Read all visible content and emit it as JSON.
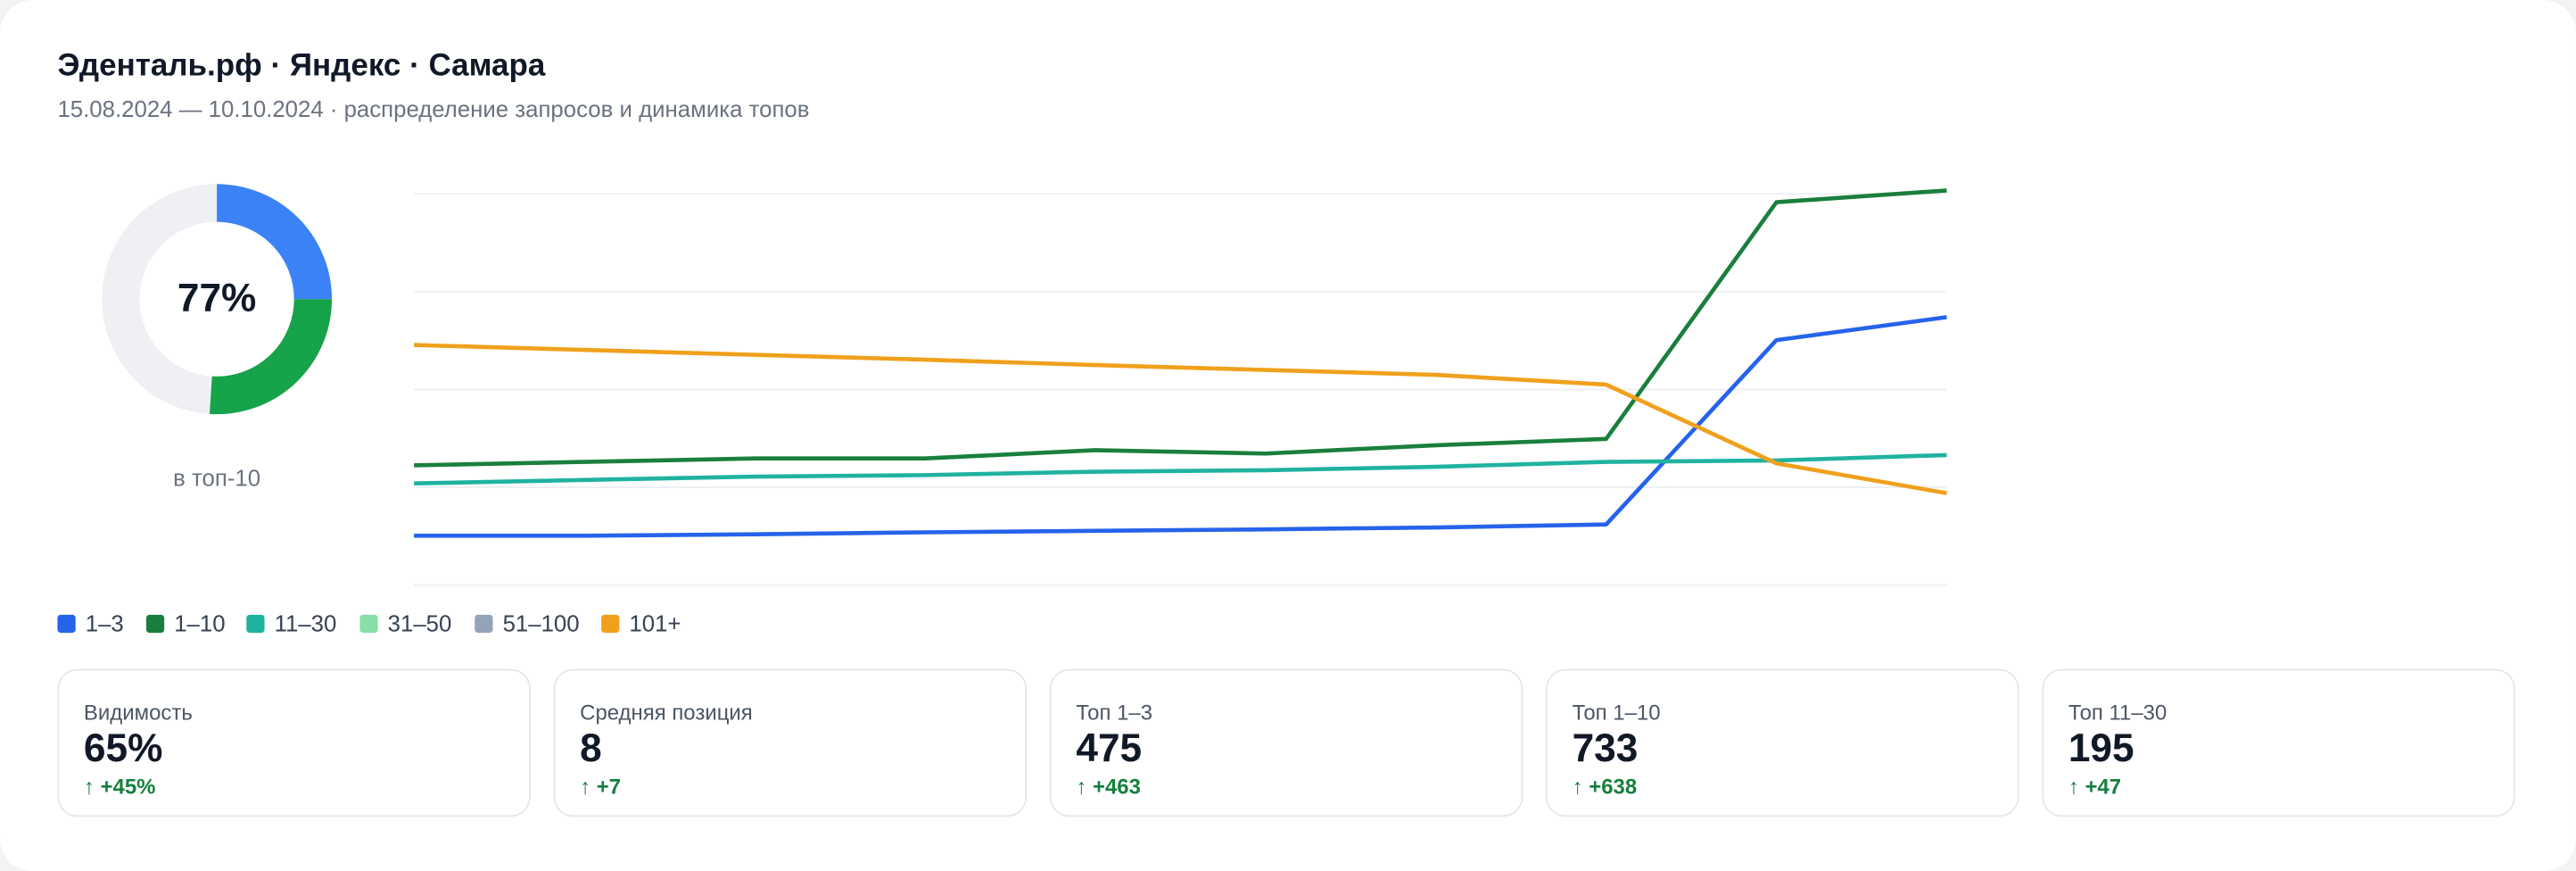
{
  "header": {
    "title": "Эденталь.рф · Яндекс · Самара",
    "subtitle": "15.08.2024 — 10.10.2024 · распределение запросов и динамика топов"
  },
  "chart_data": [
    {
      "type": "donut",
      "center_label": "77%",
      "caption": "в топ-10",
      "values": [
        25,
        26
      ],
      "colors": [
        "#3b82f6",
        "#16a34a"
      ],
      "track_color": "#eef0f3"
    },
    {
      "type": "line",
      "categories": [
        null,
        null,
        null,
        null,
        null,
        null,
        null,
        null,
        null,
        null
      ],
      "ylim": [
        0,
        820
      ],
      "yticks": [
        0,
        200,
        400,
        600,
        800
      ],
      "grid": true,
      "series": [
        {
          "name": "1–3",
          "color": "#2563eb",
          "values": [
            101,
            101,
            104,
            108,
            111,
            114,
            118,
            124,
            501,
            548
          ]
        },
        {
          "name": "1–10",
          "color": "#1a7f3c",
          "values": [
            245,
            252,
            259,
            259,
            276,
            269,
            286,
            299,
            783,
            807
          ]
        },
        {
          "name": "11–30",
          "color": "#20b2a0",
          "values": [
            208,
            215,
            222,
            225,
            232,
            235,
            242,
            252,
            255,
            266
          ]
        },
        {
          "name": "31–50",
          "color": "#86e0a8",
          "values": [
            null,
            null,
            null,
            null,
            null,
            null,
            null,
            null,
            null,
            null
          ]
        },
        {
          "name": "51–100",
          "color": "#94a3b8",
          "values": [
            null,
            null,
            null,
            null,
            null,
            null,
            null,
            null,
            null,
            null
          ]
        },
        {
          "name": "101+",
          "color": "#f0a01c",
          "values": [
            491,
            481,
            471,
            461,
            450,
            440,
            430,
            410,
            249,
            188
          ]
        }
      ]
    }
  ],
  "stats": [
    {
      "label": "Видимость",
      "value": "65%",
      "delta": "↑ +45%"
    },
    {
      "label": "Средняя позиция",
      "value": "8",
      "delta": "↑ +7"
    },
    {
      "label": "Топ 1–3",
      "value": "475",
      "delta": "↑ +463"
    },
    {
      "label": "Топ 1–10",
      "value": "733",
      "delta": "↑ +638"
    },
    {
      "label": "Топ 11–30",
      "value": "195",
      "delta": "↑ +47"
    }
  ]
}
